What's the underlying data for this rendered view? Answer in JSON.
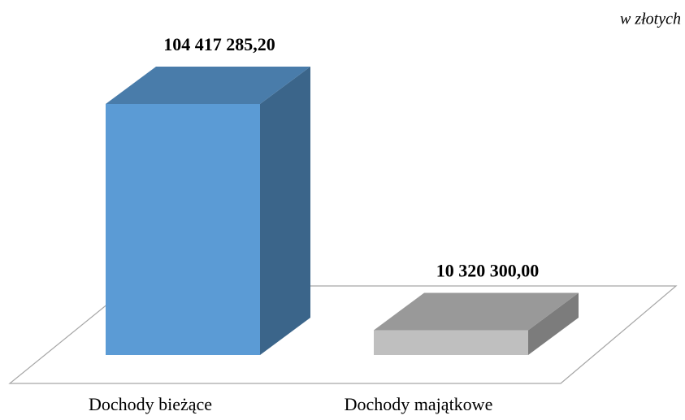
{
  "chart_data": {
    "type": "bar3d",
    "annotation": "w złotych",
    "categories": [
      "Dochody bieżące",
      "Dochody majątkowe"
    ],
    "values": [
      104417285.2,
      10320300.0
    ],
    "value_labels": [
      "104 417 285,20",
      "10 320 300,00"
    ],
    "colors": [
      "#5b9bd5",
      "#bfbfbf"
    ]
  }
}
